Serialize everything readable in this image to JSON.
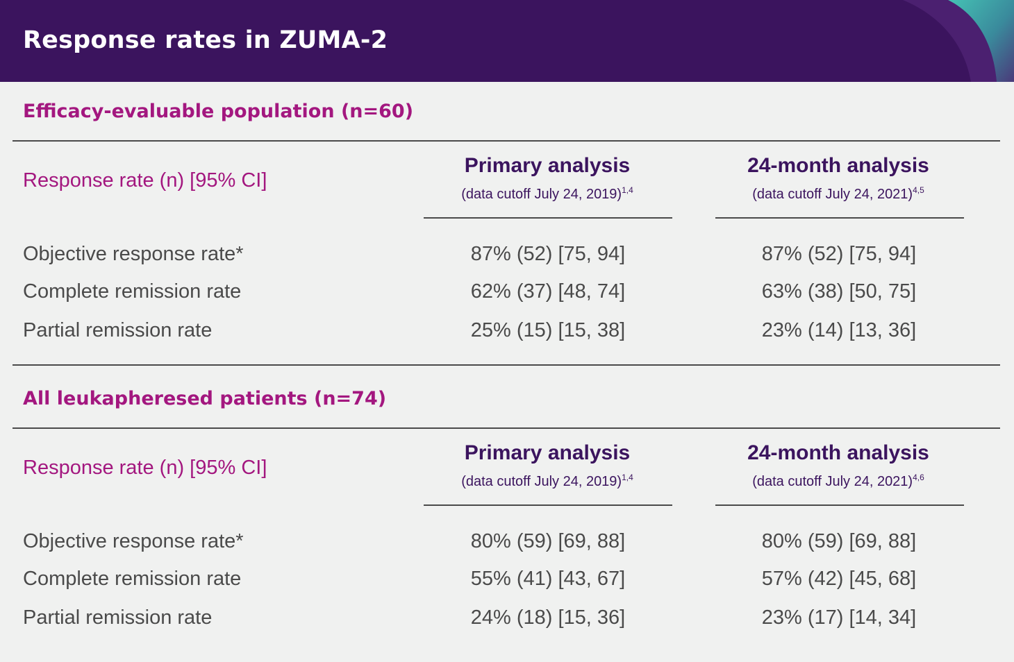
{
  "header": {
    "title": "Response rates in ZUMA-2"
  },
  "sections": [
    {
      "title": "Efficacy-evaluable population (n=60)",
      "response_label": "Response rate (n) [95% CI]",
      "columns": [
        {
          "title": "Primary analysis",
          "subtitle": "(data cutoff July 24, 2019)",
          "refs": "1,4"
        },
        {
          "title": "24-month analysis",
          "subtitle": "(data cutoff July 24, 2021)",
          "refs": "4,5"
        }
      ],
      "rows": [
        {
          "label": "Objective response rate*",
          "primary": "87% (52) [75, 94]",
          "month24": "87% (52) [75, 94]"
        },
        {
          "label": "Complete remission rate",
          "primary": "62% (37) [48, 74]",
          "month24": "63% (38) [50, 75]"
        },
        {
          "label": "Partial remission rate",
          "primary": "25% (15) [15, 38]",
          "month24": "23% (14) [13, 36]"
        }
      ]
    },
    {
      "title": "All leukapheresed patients (n=74)",
      "response_label": "Response rate (n) [95% CI]",
      "columns": [
        {
          "title": "Primary analysis",
          "subtitle": "(data cutoff July 24, 2019)",
          "refs": "1,4"
        },
        {
          "title": "24-month analysis",
          "subtitle": "(data cutoff July 24, 2021)",
          "refs": "4,6"
        }
      ],
      "rows": [
        {
          "label": "Objective response rate*",
          "primary": "80% (59) [69, 88]",
          "month24": "80% (59) [69, 88]"
        },
        {
          "label": "Complete remission rate",
          "primary": "55% (41) [43, 67]",
          "month24": "57% (42) [45, 68]"
        },
        {
          "label": "Partial remission rate",
          "primary": "24% (18) [15, 36]",
          "month24": "23% (17) [14, 34]"
        }
      ]
    }
  ],
  "colors": {
    "header_bg": "#3b145e",
    "accent_magenta": "#a3177f",
    "body_text": "#4a4a4a",
    "wave_teal": "#45c2b4"
  }
}
